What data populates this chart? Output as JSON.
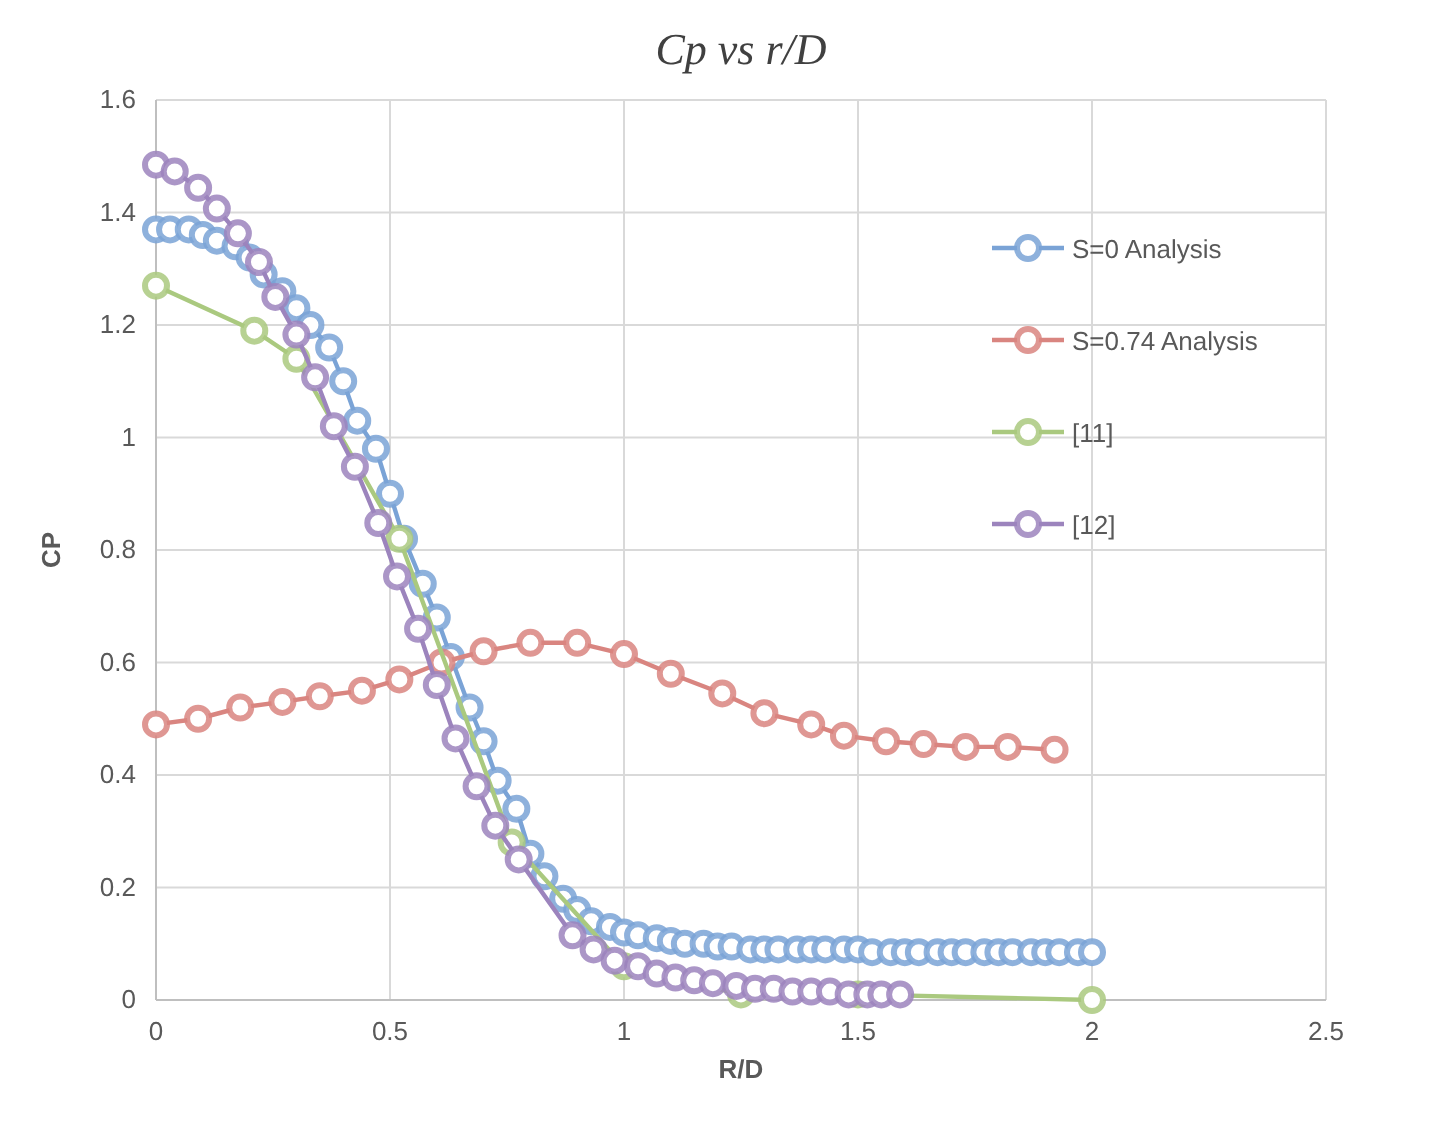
{
  "chart_data": {
    "type": "line",
    "title": "Cp vs r/D",
    "xlabel": "R/D",
    "ylabel": "CP",
    "xlim": [
      0,
      2.5
    ],
    "xticks": [
      0,
      0.5,
      1,
      1.5,
      2,
      2.5
    ],
    "ylim": [
      0,
      1.6
    ],
    "yticks": [
      0,
      0.2,
      0.4,
      0.6,
      0.8,
      1,
      1.2,
      1.4,
      1.6
    ],
    "grid": true,
    "legend": "right",
    "marker": "circle",
    "line_style": "solid",
    "series": [
      {
        "name": "S=0 Analysis",
        "color": "#7aa3d6",
        "x": [
          0,
          0.03,
          0.07,
          0.1,
          0.13,
          0.17,
          0.2,
          0.23,
          0.27,
          0.3,
          0.33,
          0.37,
          0.4,
          0.43,
          0.47,
          0.5,
          0.53,
          0.57,
          0.6,
          0.63,
          0.67,
          0.7,
          0.73,
          0.77,
          0.8,
          0.83,
          0.87,
          0.9,
          0.93,
          0.97,
          1,
          1.03,
          1.07,
          1.1,
          1.13,
          1.17,
          1.2,
          1.23,
          1.27,
          1.3,
          1.33,
          1.37,
          1.4,
          1.43,
          1.47,
          1.5,
          1.53,
          1.57,
          1.6,
          1.63,
          1.67,
          1.7,
          1.73,
          1.77,
          1.8,
          1.83,
          1.87,
          1.9,
          1.93,
          1.97,
          2
        ],
        "values": [
          1.37,
          1.37,
          1.37,
          1.36,
          1.35,
          1.34,
          1.32,
          1.29,
          1.26,
          1.23,
          1.2,
          1.16,
          1.1,
          1.03,
          0.98,
          0.9,
          0.82,
          0.74,
          0.68,
          0.61,
          0.52,
          0.46,
          0.39,
          0.34,
          0.26,
          0.22,
          0.18,
          0.16,
          0.14,
          0.13,
          0.12,
          0.115,
          0.11,
          0.105,
          0.1,
          0.1,
          0.095,
          0.095,
          0.09,
          0.09,
          0.09,
          0.09,
          0.09,
          0.09,
          0.09,
          0.09,
          0.085,
          0.085,
          0.085,
          0.085,
          0.085,
          0.085,
          0.085,
          0.085,
          0.085,
          0.085,
          0.085,
          0.085,
          0.085,
          0.085,
          0.085
        ]
      },
      {
        "name": "S=0.74 Analysis",
        "color": "#d98580",
        "x": [
          0,
          0.09,
          0.18,
          0.27,
          0.35,
          0.44,
          0.52,
          0.61,
          0.7,
          0.8,
          0.9,
          1,
          1.1,
          1.21,
          1.3,
          1.4,
          1.47,
          1.56,
          1.64,
          1.73,
          1.82,
          1.92
        ],
        "values": [
          0.49,
          0.5,
          0.52,
          0.53,
          0.54,
          0.55,
          0.57,
          0.6,
          0.62,
          0.635,
          0.635,
          0.615,
          0.58,
          0.545,
          0.51,
          0.49,
          0.47,
          0.46,
          0.455,
          0.45,
          0.45,
          0.445
        ]
      },
      {
        "name": "[11]",
        "color": "#aac97f",
        "x": [
          0,
          0.21,
          0.3,
          0.52,
          0.76,
          1,
          1.25,
          1.5,
          2
        ],
        "values": [
          1.27,
          1.19,
          1.14,
          0.82,
          0.28,
          0.06,
          0.01,
          0.01,
          0
        ]
      },
      {
        "name": "[12]",
        "color": "#9c84bd",
        "x": [
          0,
          0.04,
          0.09,
          0.13,
          0.175,
          0.22,
          0.255,
          0.3,
          0.34,
          0.38,
          0.425,
          0.475,
          0.515,
          0.56,
          0.6,
          0.64,
          0.685,
          0.725,
          0.775,
          0.89,
          0.935,
          0.98,
          1.03,
          1.07,
          1.11,
          1.15,
          1.19,
          1.24,
          1.28,
          1.32,
          1.36,
          1.4,
          1.44,
          1.48,
          1.52,
          1.55,
          1.59
        ],
        "values": [
          1.485,
          1.473,
          1.444,
          1.407,
          1.363,
          1.312,
          1.25,
          1.183,
          1.107,
          1.02,
          0.948,
          0.848,
          0.753,
          0.66,
          0.56,
          0.465,
          0.38,
          0.31,
          0.25,
          0.115,
          0.09,
          0.07,
          0.06,
          0.047,
          0.04,
          0.035,
          0.03,
          0.025,
          0.02,
          0.02,
          0.015,
          0.015,
          0.015,
          0.01,
          0.01,
          0.01,
          0.01
        ]
      }
    ]
  }
}
